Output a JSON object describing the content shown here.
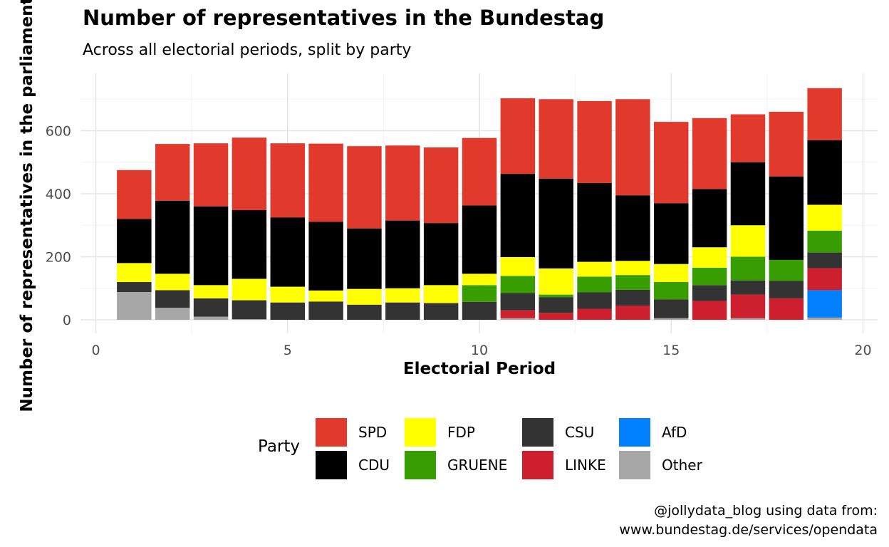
{
  "title": "Number of representatives in the Bundestag",
  "subtitle": "Across all electorial periods, split by party",
  "caption": {
    "line1": "@jollydata_blog using data from:",
    "line2": "www.bundestag.de/services/opendata"
  },
  "chart_data": {
    "type": "bar",
    "stacked": true,
    "xlabel": "Electorial Period",
    "ylabel": "Number of representatives in the parliament",
    "xlim": [
      0,
      20
    ],
    "ylim": [
      0,
      700
    ],
    "xticks": [
      0,
      5,
      10,
      15,
      20
    ],
    "yticks": [
      0,
      200,
      400,
      600
    ],
    "grid": true,
    "legend_title": "Party",
    "legend_position": "bottom",
    "x": [
      1,
      2,
      3,
      4,
      5,
      6,
      7,
      8,
      9,
      10,
      11,
      12,
      13,
      14,
      15,
      16,
      17,
      18,
      19
    ],
    "series": [
      {
        "name": "Other",
        "color": "#A6A6A6",
        "values": [
          88,
          38,
          10,
          2,
          0,
          0,
          0,
          0,
          0,
          0,
          5,
          0,
          0,
          0,
          5,
          0,
          5,
          0,
          7
        ]
      },
      {
        "name": "AfD",
        "color": "#0080FF",
        "values": [
          0,
          0,
          0,
          0,
          0,
          0,
          0,
          0,
          0,
          0,
          0,
          0,
          0,
          0,
          0,
          0,
          0,
          0,
          87
        ]
      },
      {
        "name": "LINKE",
        "color": "#CE1F2E",
        "values": [
          0,
          0,
          0,
          0,
          0,
          0,
          0,
          0,
          0,
          0,
          25,
          22,
          35,
          45,
          0,
          60,
          75,
          68,
          70
        ]
      },
      {
        "name": "CSU",
        "color": "#333333",
        "values": [
          32,
          56,
          58,
          60,
          55,
          58,
          48,
          55,
          53,
          57,
          55,
          50,
          52,
          50,
          60,
          50,
          45,
          56,
          50
        ]
      },
      {
        "name": "GRUENE",
        "color": "#389E00",
        "values": [
          0,
          0,
          0,
          0,
          0,
          0,
          0,
          0,
          0,
          53,
          54,
          8,
          50,
          47,
          55,
          55,
          75,
          66,
          69
        ]
      },
      {
        "name": "FDP",
        "color": "#FFFF00",
        "values": [
          60,
          52,
          42,
          68,
          50,
          35,
          50,
          45,
          57,
          36,
          60,
          83,
          47,
          45,
          57,
          65,
          100,
          0,
          82
        ]
      },
      {
        "name": "CDU",
        "color": "#000000",
        "values": [
          140,
          232,
          250,
          218,
          220,
          218,
          192,
          215,
          197,
          217,
          264,
          285,
          250,
          208,
          193,
          185,
          200,
          265,
          205
        ]
      },
      {
        "name": "SPD",
        "color": "#E13A2D",
        "values": [
          155,
          180,
          200,
          230,
          235,
          248,
          261,
          238,
          240,
          214,
          240,
          252,
          260,
          305,
          258,
          225,
          152,
          205,
          165
        ]
      }
    ]
  }
}
